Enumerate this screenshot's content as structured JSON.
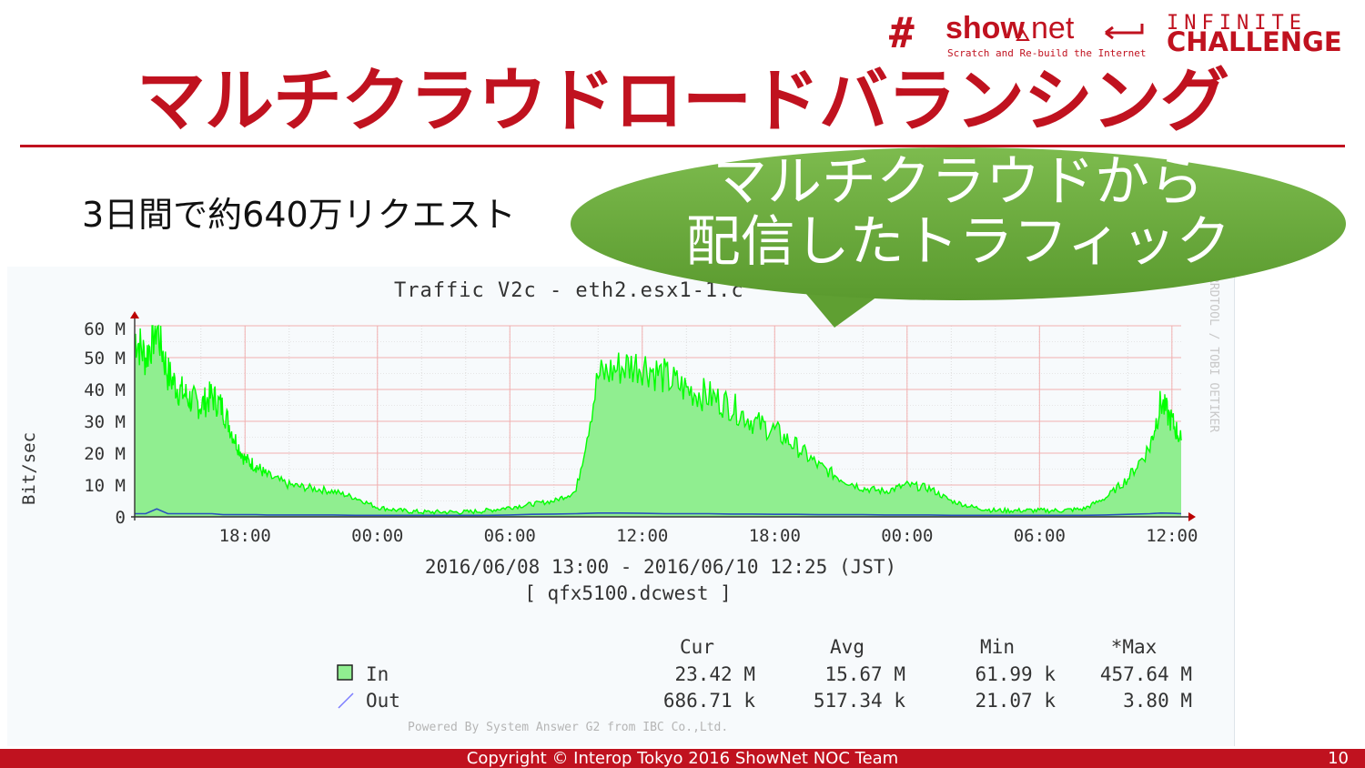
{
  "slide": {
    "title": "マルチクラウドロードバランシング",
    "subtitle": "3日間で約640万リクエスト",
    "callout": [
      "マルチクラウドから",
      "配信したトラフィック"
    ],
    "footer": "Copyright © Interop Tokyo 2016 ShowNet NOC Team",
    "page_number": "10"
  },
  "logo": {
    "mark": "#",
    "brand_show": "show",
    "brand_net": "net",
    "tagline": "Scratch and Re-build the Internet",
    "infinite": "INFINITE",
    "challenge": "CHALLENGE"
  },
  "colors": {
    "accent": "#c0121f",
    "in_fill": "#90ee90",
    "in_line": "#00ff00",
    "out_line": "#2a52be",
    "callout": "#6aaa3a"
  },
  "chart_data": {
    "type": "area",
    "title": "Traffic V2c - eth2.esx1-1.c",
    "ylabel": "Bit/sec",
    "ylim": [
      0,
      60000000
    ],
    "y_ticks": [
      "60 M",
      "50 M",
      "40 M",
      "30 M",
      "20 M",
      "10 M",
      "0"
    ],
    "x_ticks": [
      "18:00",
      "00:00",
      "06:00",
      "12:00",
      "18:00",
      "00:00",
      "06:00",
      "12:00"
    ],
    "x_range_label": "2016/06/08 13:00 - 2016/06/10 12:25 (JST)",
    "device_label": "[ qfx5100.dcwest ]",
    "watermark": "RRDTOOL / TOBI OETIKER",
    "powered_by": "Powered By System Answer G2 from IBC Co.,Ltd.",
    "x_hours_since_start": [
      0,
      0.5,
      1,
      1.5,
      2,
      2.5,
      3,
      3.5,
      4,
      4.5,
      5,
      5.5,
      6,
      7,
      8,
      9,
      10,
      11,
      12,
      13,
      14,
      15,
      16,
      17,
      18,
      19,
      20,
      21,
      22,
      23,
      24,
      25,
      26,
      27,
      28,
      29,
      30,
      31,
      32,
      33,
      34,
      35,
      36,
      37,
      38,
      39,
      40,
      41,
      42,
      43,
      44,
      45,
      46,
      46.5,
      47,
      47.42
    ],
    "series": [
      {
        "name": "In",
        "values": [
          57,
          50,
          60,
          45,
          40,
          37,
          35,
          38,
          34,
          25,
          18,
          16,
          13,
          10,
          9,
          8,
          6,
          3,
          2,
          1.5,
          1.5,
          1.5,
          2,
          3,
          4,
          5,
          8,
          44,
          47,
          48,
          44,
          40,
          38,
          35,
          30,
          27,
          22,
          16,
          12,
          9,
          8,
          10,
          9,
          5,
          3,
          2,
          2,
          2,
          2,
          2.5,
          6,
          12,
          22,
          36,
          30,
          24
        ],
        "cur": "23.42 M",
        "avg": "15.67 M",
        "min": "61.99 k",
        "max": "457.64 M"
      },
      {
        "name": "Out",
        "values": [
          1,
          1,
          2.5,
          1,
          1,
          1,
          1,
          1,
          0.7,
          0.7,
          0.7,
          0.7,
          0.6,
          0.6,
          0.6,
          0.6,
          0.5,
          0.5,
          0.5,
          0.5,
          0.5,
          0.5,
          0.5,
          0.6,
          0.8,
          0.9,
          1,
          1.2,
          1.2,
          1.1,
          1,
          1,
          1,
          0.9,
          0.9,
          0.8,
          0.8,
          0.7,
          0.7,
          0.7,
          0.6,
          0.6,
          0.6,
          0.5,
          0.5,
          0.5,
          0.5,
          0.5,
          0.5,
          0.5,
          0.6,
          0.8,
          1,
          1.2,
          1.1,
          1
        ],
        "cur": "686.71 k",
        "avg": "517.34 k",
        "min": "21.07 k",
        "max": "3.80 M"
      }
    ],
    "legend_headers": [
      "Cur",
      "Avg",
      "Min",
      "*Max"
    ]
  }
}
